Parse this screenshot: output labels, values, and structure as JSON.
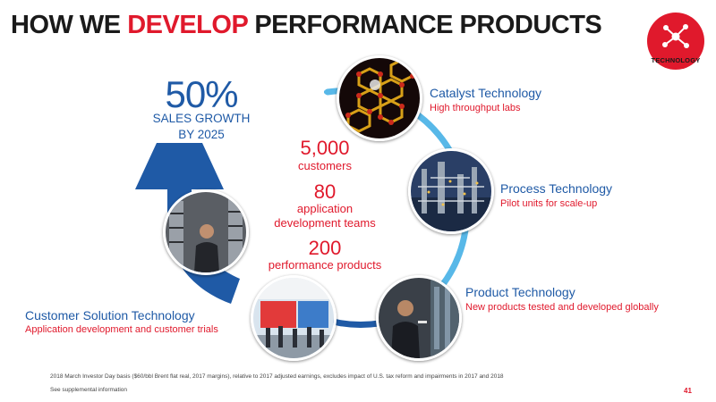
{
  "title": {
    "prefix": "HOW WE ",
    "accent": "DEVELOP",
    "suffix": " PERFORMANCE PRODUCTS"
  },
  "badge": {
    "label": "TECHNOLOGY",
    "icon": "network-nodes-icon"
  },
  "growth": {
    "value": "50%",
    "line1": "SALES GROWTH",
    "line2": "BY 2025"
  },
  "stats": [
    {
      "value": "5,000",
      "label": "customers"
    },
    {
      "value": "80",
      "label_line1": "application",
      "label_line2": "development teams"
    },
    {
      "value": "200",
      "label": "performance products"
    }
  ],
  "stages": {
    "catalyst": {
      "title": "Catalyst Technology",
      "subtitle": "High throughput labs"
    },
    "process": {
      "title": "Process Technology",
      "subtitle": "Pilot units for scale-up"
    },
    "product": {
      "title": "Product Technology",
      "subtitle": "New products tested and developed globally"
    },
    "customer": {
      "title": "Customer Solution Technology",
      "subtitle": "Application development and customer trials"
    }
  },
  "footnotes": {
    "line1": "2018 March Investor Day basis ($60/bbl Brent flat real, 2017 margins), relative to 2017 adjusted earnings, excludes impact of U.S. tax reform and impairments in 2017 and 2018",
    "line2": "See supplemental information"
  },
  "page_number": "41",
  "colors": {
    "accent_red": "#e0192c",
    "brand_blue": "#1f5aa6",
    "cycle_light": "#58b8e8",
    "cycle_dark": "#1f5aa6"
  }
}
